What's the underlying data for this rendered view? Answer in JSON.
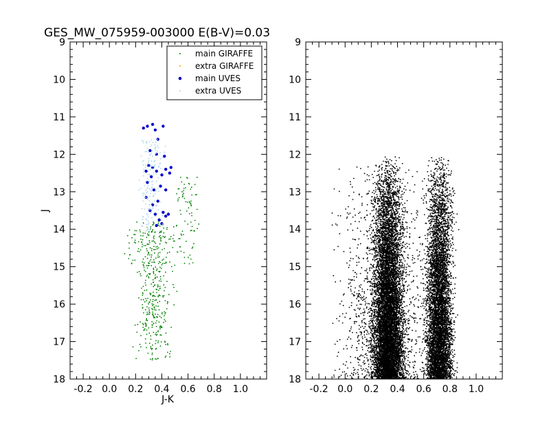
{
  "title": "GES_MW_075959-003000 E(B-V)=0.03",
  "chart_data": [
    {
      "type": "scatter",
      "panel": "left",
      "xlabel": "J-K",
      "ylabel": "J",
      "xlim": [
        -0.3,
        1.2
      ],
      "ylim": [
        18,
        9
      ],
      "y_inverted": true,
      "xticks": [
        "-0.2",
        "0.0",
        "0.2",
        "0.4",
        "0.6",
        "0.8",
        "1.0"
      ],
      "yticks": [
        "9",
        "10",
        "11",
        "12",
        "13",
        "14",
        "15",
        "16",
        "17",
        "18"
      ],
      "legend_position": "top-right",
      "series": [
        {
          "name": "main GIRAFFE",
          "color": "#008000",
          "marker": "small-dot",
          "distribution": {
            "count": 520,
            "segments": [
              {
                "j_range": [
                  13.8,
                  17.5
                ],
                "jk_center": 0.34,
                "jk_spread": 0.09,
                "weight": 0.78
              },
              {
                "j_range": [
                  12.6,
                  15.0
                ],
                "jk_center": 0.58,
                "jk_spread": 0.08,
                "weight": 0.17
              },
              {
                "j_range": [
                  14.0,
                  15.0
                ],
                "jk_center": 0.2,
                "jk_spread": 0.06,
                "weight": 0.05
              }
            ]
          }
        },
        {
          "name": "extra GIRAFFE",
          "color": "#ffa500",
          "marker": "small-dot",
          "distribution": {
            "count": 0,
            "segments": []
          }
        },
        {
          "name": "main UVES",
          "color": "#0000cc",
          "marker": "dot",
          "points": [
            [
              0.26,
              11.3
            ],
            [
              0.29,
              11.25
            ],
            [
              0.33,
              11.2
            ],
            [
              0.35,
              11.35
            ],
            [
              0.41,
              11.25
            ],
            [
              0.37,
              11.6
            ],
            [
              0.31,
              11.9
            ],
            [
              0.36,
              12.0
            ],
            [
              0.42,
              12.05
            ],
            [
              0.3,
              12.3
            ],
            [
              0.28,
              12.45
            ],
            [
              0.33,
              12.35
            ],
            [
              0.36,
              12.45
            ],
            [
              0.43,
              12.4
            ],
            [
              0.47,
              12.35
            ],
            [
              0.32,
              12.6
            ],
            [
              0.4,
              12.55
            ],
            [
              0.46,
              12.5
            ],
            [
              0.29,
              12.75
            ],
            [
              0.39,
              12.85
            ],
            [
              0.34,
              12.95
            ],
            [
              0.43,
              12.95
            ],
            [
              0.28,
              13.15
            ],
            [
              0.37,
              13.25
            ],
            [
              0.33,
              13.35
            ],
            [
              0.31,
              13.5
            ],
            [
              0.41,
              13.55
            ],
            [
              0.35,
              13.6
            ],
            [
              0.43,
              13.65
            ],
            [
              0.45,
              13.6
            ],
            [
              0.38,
              13.75
            ],
            [
              0.4,
              13.85
            ],
            [
              0.36,
              13.9
            ]
          ]
        },
        {
          "name": "extra UVES",
          "color": "#aad4ec",
          "marker": "small-dot",
          "distribution": {
            "count": 170,
            "segments": [
              {
                "j_range": [
                  11.6,
                  14.1
                ],
                "jk_center": 0.32,
                "jk_spread": 0.06,
                "weight": 1.0
              }
            ]
          }
        }
      ]
    },
    {
      "type": "scatter",
      "panel": "right",
      "xlabel": "",
      "ylabel": "",
      "xlim": [
        -0.3,
        1.2
      ],
      "ylim": [
        18,
        9
      ],
      "y_inverted": true,
      "xticks": [
        "-0.2",
        "0.0",
        "0.2",
        "0.4",
        "0.6",
        "0.8",
        "1.0"
      ],
      "yticks": [
        "9",
        "10",
        "11",
        "12",
        "13",
        "14",
        "15",
        "16",
        "17",
        "18"
      ],
      "series": [
        {
          "color": "#000000",
          "marker": "small-dot",
          "distribution": {
            "count": 16000,
            "j_range": [
              12.0,
              18.0
            ],
            "branches": [
              {
                "jk_center": 0.33,
                "jk_spread": 0.075,
                "weight": 0.52
              },
              {
                "jk_center": 0.72,
                "jk_spread": 0.065,
                "weight": 0.38
              },
              {
                "jk_center": 0.3,
                "jk_spread": 0.22,
                "weight": 0.1
              }
            ]
          }
        }
      ]
    }
  ]
}
